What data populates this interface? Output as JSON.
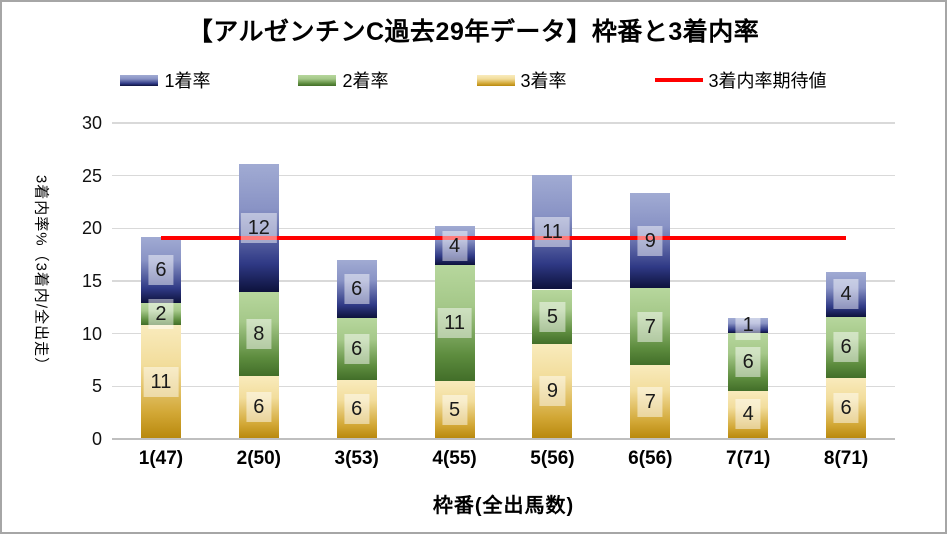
{
  "chart_data": {
    "type": "bar",
    "subtype": "stacked-column-with-line",
    "title": "【アルゼンチンC過去29年データ】枠番と3着内率",
    "xlabel": "枠番(全出馬数)",
    "ylabel": "3着内率%（3着内/全出走）",
    "ylim": [
      0,
      30
    ],
    "ytick_step": 5,
    "y_ticks": [
      "0",
      "5",
      "10",
      "15",
      "20",
      "25",
      "30"
    ],
    "grid": true,
    "legend_position": "top",
    "legend_order": [
      "1着率",
      "2着率",
      "3着率",
      "3着内率期待値"
    ],
    "categories": [
      "1(47)",
      "2(50)",
      "3(53)",
      "4(55)",
      "5(56)",
      "6(56)",
      "7(71)",
      "8(71)"
    ],
    "series": [
      {
        "name": "3着率",
        "stack": "bottom",
        "values": [
          10.7,
          5.9,
          5.5,
          5.4,
          8.9,
          6.9,
          4.5,
          5.7
        ],
        "labels": [
          "11",
          "6",
          "6",
          "5",
          "9",
          "7",
          "4",
          "6"
        ],
        "gradient": [
          "#f9ebbd",
          "#f2dd9c",
          "#d2a735",
          "#b9890e"
        ]
      },
      {
        "name": "2着率",
        "stack": "middle",
        "values": [
          2.1,
          8.0,
          5.9,
          11.0,
          5.2,
          7.3,
          5.5,
          5.8
        ],
        "labels": [
          "2",
          "8",
          "6",
          "11",
          "5",
          "7",
          "6",
          "6"
        ],
        "gradient": [
          "#b7d79d",
          "#a5c889",
          "#5d8c3e",
          "#426e29"
        ]
      },
      {
        "name": "1着率",
        "stack": "top",
        "values": [
          6.3,
          12.1,
          5.5,
          3.7,
          10.9,
          9.1,
          1.4,
          4.3
        ],
        "labels": [
          "6",
          "12",
          "6",
          "4",
          "11",
          "9",
          "1",
          "4"
        ],
        "gradient": [
          "#a1abd3",
          "#8993c5",
          "#2f3985",
          "#0d123c"
        ]
      }
    ],
    "line_series": {
      "name": "3着内率期待値",
      "color": "#ff0000",
      "value": 19.1
    }
  },
  "colors": {
    "background": "#ffffff",
    "border": "#a6a6a6",
    "grid": "#d9d9d9",
    "axis": "#bfbfbf",
    "label_box": "rgba(255,255,255,0.48)"
  }
}
